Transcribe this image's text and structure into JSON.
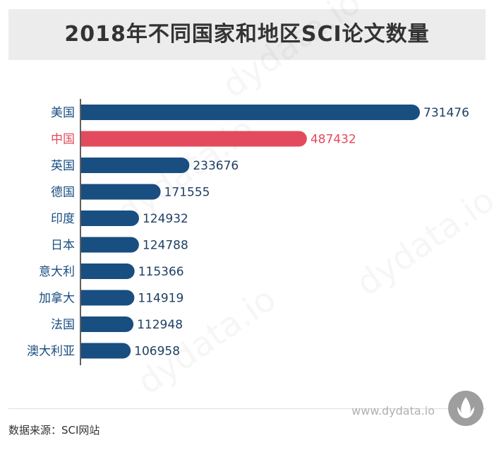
{
  "source": "数据来源：SCI网站",
  "website": "www.dydata.io",
  "watermark": "dydata.io",
  "colors": {
    "default": "#184e80",
    "highlight": "#e34a5d",
    "title_band": "#ececec"
  },
  "chart_data": {
    "type": "bar",
    "orientation": "horizontal",
    "title": "2018年不同国家和地区SCI论文数量",
    "categories": [
      "美国",
      "中国",
      "英国",
      "德国",
      "印度",
      "日本",
      "意大利",
      "加拿大",
      "法国",
      "澳大利亚"
    ],
    "values": [
      731476,
      487432,
      233676,
      171555,
      124932,
      124788,
      115366,
      114919,
      112948,
      106958
    ],
    "highlight": [
      "中国"
    ],
    "xlim": [
      0,
      731476
    ],
    "grid": false,
    "legend": "none",
    "data_labels": true
  }
}
